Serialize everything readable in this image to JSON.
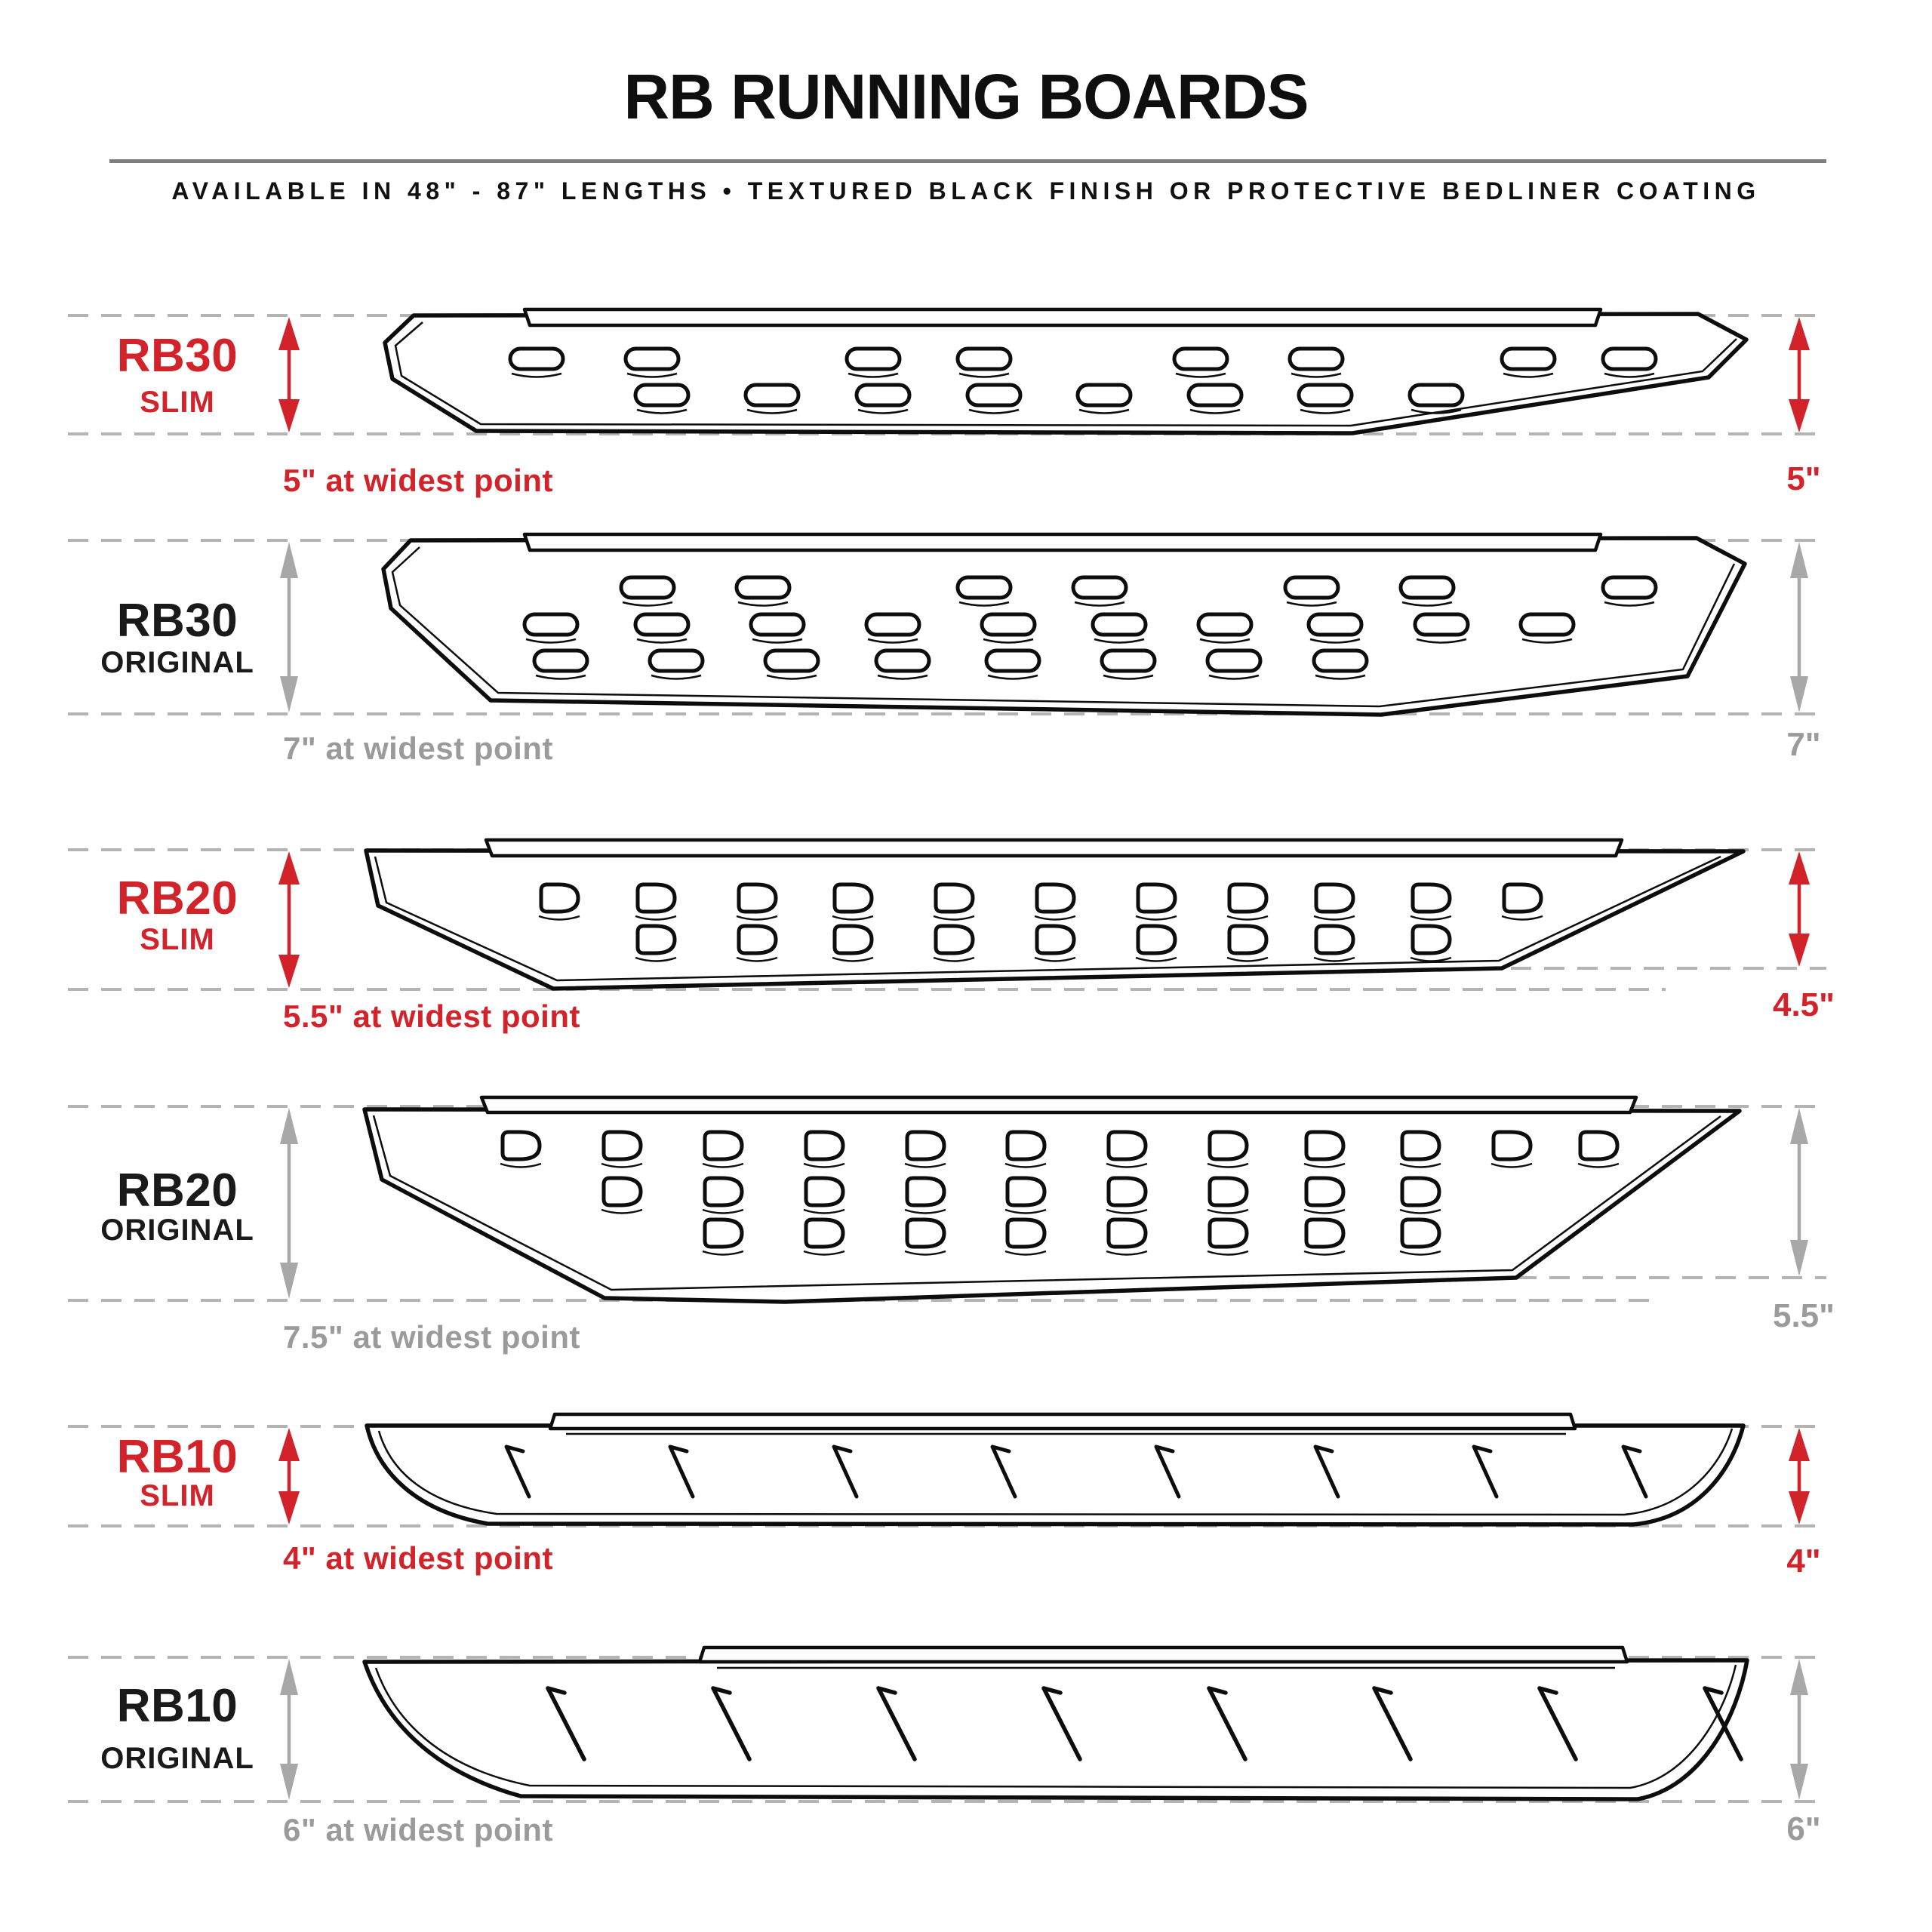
{
  "header": {
    "title": "RB RUNNING BOARDS",
    "subtitle": "AVAILABLE IN 48\" - 87\" LENGTHS   •   TEXTURED BLACK FINISH OR PROTECTIVE BEDLINER COATING"
  },
  "colors": {
    "red": "#D2232A",
    "dark": "#1A1A1A",
    "gray_text": "#9B9B9B",
    "gray_arrow": "#A8A8A8",
    "dash": "#B4B4B4",
    "line": "#0D0D0D",
    "rule": "#7F7F7F"
  },
  "sections": [
    {
      "model": "RB30",
      "variant": "SLIM",
      "family": "rb30",
      "style": "slim",
      "accent": "red",
      "left_note": "5\" at widest point",
      "right_note": "5\"",
      "widest_in": "5",
      "right_end_in": "5"
    },
    {
      "model": "RB30",
      "variant": "ORIGINAL",
      "family": "rb30",
      "style": "original",
      "accent": "dark",
      "left_note": "7\" at widest point",
      "right_note": "7\"",
      "widest_in": "7",
      "right_end_in": "7"
    },
    {
      "model": "RB20",
      "variant": "SLIM",
      "family": "rb20",
      "style": "slim",
      "accent": "red",
      "left_note": "5.5\" at widest point",
      "right_note": "4.5\"",
      "widest_in": "5.5",
      "right_end_in": "4.5"
    },
    {
      "model": "RB20",
      "variant": "ORIGINAL",
      "family": "rb20",
      "style": "original",
      "accent": "dark",
      "left_note": "7.5\" at widest point",
      "right_note": "5.5\"",
      "widest_in": "7.5",
      "right_end_in": "5.5"
    },
    {
      "model": "RB10",
      "variant": "SLIM",
      "family": "rb10",
      "style": "slim",
      "accent": "red",
      "left_note": "4\" at widest point",
      "right_note": "4\"",
      "widest_in": "4",
      "right_end_in": "4"
    },
    {
      "model": "RB10",
      "variant": "ORIGINAL",
      "family": "rb10",
      "style": "original",
      "accent": "dark",
      "left_note": "6\" at widest point",
      "right_note": "6\"",
      "widest_in": "6",
      "right_end_in": "6"
    }
  ]
}
